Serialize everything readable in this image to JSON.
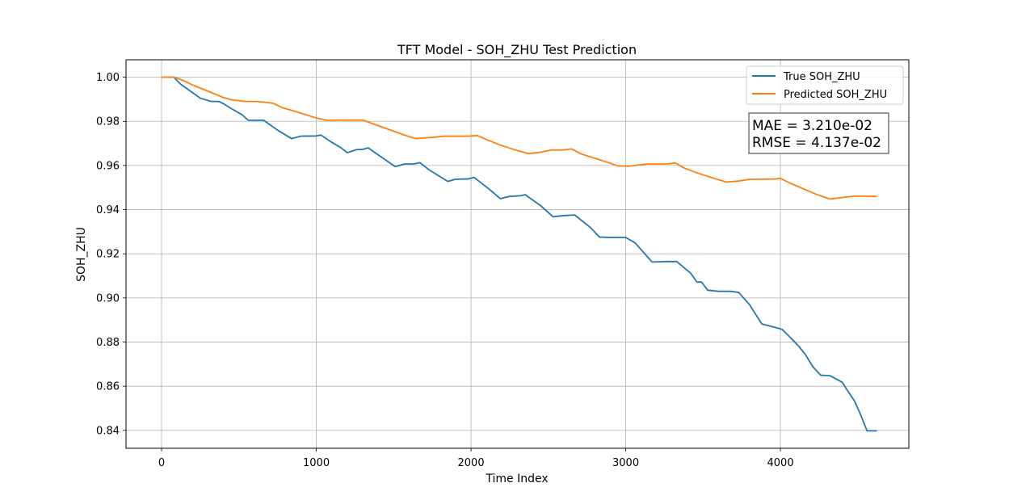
{
  "chart_data": {
    "type": "line",
    "title": "TFT Model - SOH_ZHU Test Prediction",
    "xlabel": "Time Index",
    "ylabel": "SOH_ZHU",
    "xlim": [
      -230,
      4830
    ],
    "ylim": [
      0.8319,
      1.0079
    ],
    "xticks": [
      0,
      1000,
      2000,
      3000,
      4000
    ],
    "yticks": [
      0.84,
      0.86,
      0.88,
      0.9,
      0.92,
      0.94,
      0.96,
      0.98,
      1.0
    ],
    "ytick_labels": [
      "0.84",
      "0.86",
      "0.88",
      "0.90",
      "0.92",
      "0.94",
      "0.96",
      "0.98",
      "1.00"
    ],
    "grid": true,
    "legend_position": "top-right",
    "series": [
      {
        "name": "True SOH_ZHU",
        "color": "#1f77b4",
        "points": [
          [
            0,
            1.0
          ],
          [
            80,
            1.0
          ],
          [
            120,
            0.997
          ],
          [
            200,
            0.993
          ],
          [
            250,
            0.9905
          ],
          [
            320,
            0.989
          ],
          [
            370,
            0.989
          ],
          [
            400,
            0.988
          ],
          [
            450,
            0.9858
          ],
          [
            520,
            0.983
          ],
          [
            560,
            0.9805
          ],
          [
            660,
            0.9805
          ],
          [
            750,
            0.976
          ],
          [
            840,
            0.9722
          ],
          [
            900,
            0.9733
          ],
          [
            1000,
            0.9734
          ],
          [
            1030,
            0.9738
          ],
          [
            1100,
            0.9705
          ],
          [
            1160,
            0.968
          ],
          [
            1200,
            0.9658
          ],
          [
            1260,
            0.9672
          ],
          [
            1300,
            0.9673
          ],
          [
            1335,
            0.968
          ],
          [
            1400,
            0.9648
          ],
          [
            1510,
            0.9595
          ],
          [
            1570,
            0.9607
          ],
          [
            1630,
            0.9607
          ],
          [
            1670,
            0.9613
          ],
          [
            1730,
            0.958
          ],
          [
            1850,
            0.9528
          ],
          [
            1900,
            0.9538
          ],
          [
            1980,
            0.9539
          ],
          [
            2020,
            0.9546
          ],
          [
            2110,
            0.9497
          ],
          [
            2190,
            0.945
          ],
          [
            2250,
            0.946
          ],
          [
            2320,
            0.9463
          ],
          [
            2350,
            0.9468
          ],
          [
            2450,
            0.9418
          ],
          [
            2530,
            0.9368
          ],
          [
            2600,
            0.9373
          ],
          [
            2670,
            0.9376
          ],
          [
            2770,
            0.932
          ],
          [
            2830,
            0.9276
          ],
          [
            2900,
            0.9274
          ],
          [
            3000,
            0.9274
          ],
          [
            3060,
            0.925
          ],
          [
            3170,
            0.9163
          ],
          [
            3270,
            0.9165
          ],
          [
            3330,
            0.9165
          ],
          [
            3420,
            0.9112
          ],
          [
            3460,
            0.9072
          ],
          [
            3490,
            0.9072
          ],
          [
            3530,
            0.9035
          ],
          [
            3600,
            0.903
          ],
          [
            3680,
            0.903
          ],
          [
            3730,
            0.9025
          ],
          [
            3800,
            0.897
          ],
          [
            3880,
            0.8882
          ],
          [
            3960,
            0.8868
          ],
          [
            4010,
            0.8858
          ],
          [
            4060,
            0.8824
          ],
          [
            4120,
            0.878
          ],
          [
            4160,
            0.8745
          ],
          [
            4210,
            0.8688
          ],
          [
            4260,
            0.865
          ],
          [
            4320,
            0.8648
          ],
          [
            4400,
            0.8618
          ],
          [
            4420,
            0.8595
          ],
          [
            4480,
            0.8532
          ],
          [
            4520,
            0.8468
          ],
          [
            4560,
            0.8398
          ],
          [
            4620,
            0.8398
          ]
        ]
      },
      {
        "name": "Predicted SOH_ZHU",
        "color": "#ff7f0e",
        "points": [
          [
            0,
            1.0
          ],
          [
            80,
            1.0
          ],
          [
            100,
            0.9996
          ],
          [
            150,
            0.9982
          ],
          [
            200,
            0.9965
          ],
          [
            270,
            0.9945
          ],
          [
            330,
            0.9928
          ],
          [
            400,
            0.9908
          ],
          [
            450,
            0.9898
          ],
          [
            540,
            0.989
          ],
          [
            620,
            0.989
          ],
          [
            720,
            0.9882
          ],
          [
            780,
            0.9862
          ],
          [
            850,
            0.9848
          ],
          [
            920,
            0.9833
          ],
          [
            1000,
            0.9815
          ],
          [
            1070,
            0.9805
          ],
          [
            1150,
            0.9806
          ],
          [
            1240,
            0.9806
          ],
          [
            1300,
            0.9806
          ],
          [
            1390,
            0.9783
          ],
          [
            1470,
            0.9763
          ],
          [
            1560,
            0.974
          ],
          [
            1640,
            0.9722
          ],
          [
            1700,
            0.9725
          ],
          [
            1760,
            0.9728
          ],
          [
            1820,
            0.9733
          ],
          [
            1900,
            0.9733
          ],
          [
            1990,
            0.9733
          ],
          [
            2040,
            0.9736
          ],
          [
            2100,
            0.9718
          ],
          [
            2180,
            0.9695
          ],
          [
            2270,
            0.9674
          ],
          [
            2330,
            0.9662
          ],
          [
            2370,
            0.9654
          ],
          [
            2430,
            0.9658
          ],
          [
            2520,
            0.967
          ],
          [
            2590,
            0.967
          ],
          [
            2650,
            0.9675
          ],
          [
            2710,
            0.9653
          ],
          [
            2790,
            0.9635
          ],
          [
            2880,
            0.9615
          ],
          [
            2950,
            0.9598
          ],
          [
            3020,
            0.9597
          ],
          [
            3080,
            0.9602
          ],
          [
            3140,
            0.9607
          ],
          [
            3270,
            0.9607
          ],
          [
            3320,
            0.9612
          ],
          [
            3380,
            0.9588
          ],
          [
            3480,
            0.9562
          ],
          [
            3580,
            0.954
          ],
          [
            3650,
            0.9525
          ],
          [
            3720,
            0.9529
          ],
          [
            3800,
            0.9537
          ],
          [
            3900,
            0.9538
          ],
          [
            3970,
            0.9539
          ],
          [
            4000,
            0.9542
          ],
          [
            4060,
            0.9521
          ],
          [
            4140,
            0.9497
          ],
          [
            4230,
            0.947
          ],
          [
            4320,
            0.9448
          ],
          [
            4400,
            0.9455
          ],
          [
            4480,
            0.9461
          ],
          [
            4560,
            0.9461
          ],
          [
            4620,
            0.946
          ]
        ]
      }
    ],
    "annotation": {
      "lines": [
        "MAE = 3.210e-02",
        "RMSE = 4.137e-02"
      ]
    }
  }
}
